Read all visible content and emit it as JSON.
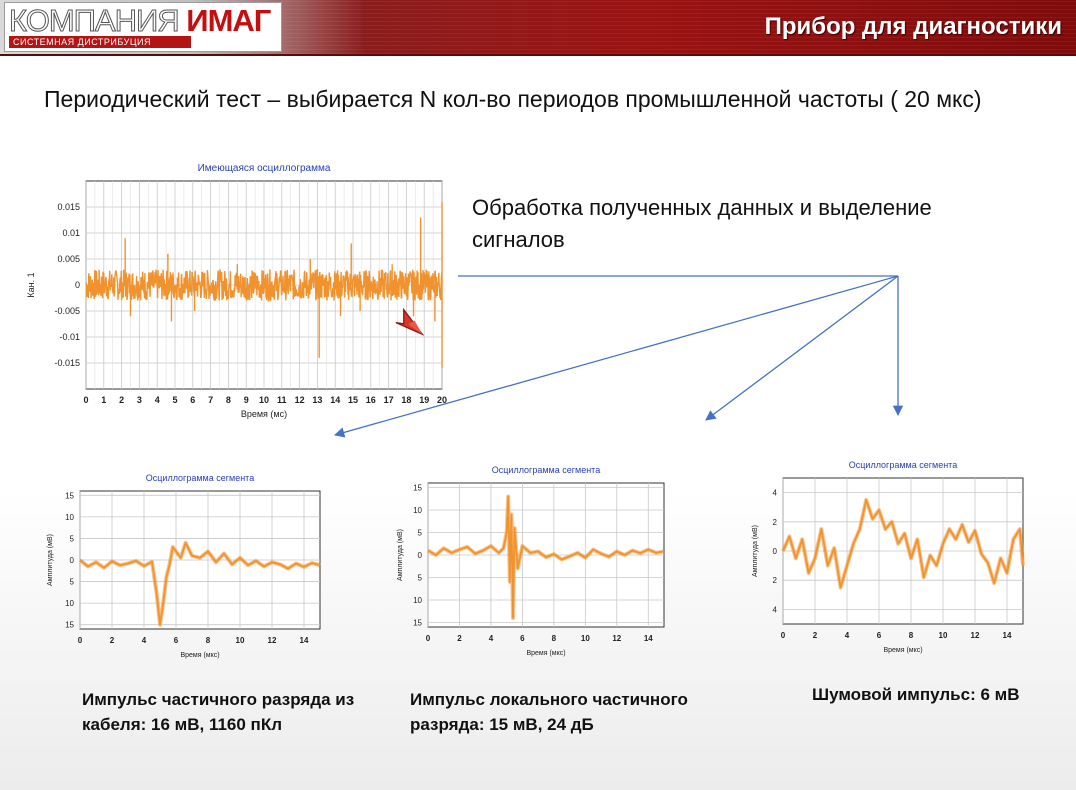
{
  "header": {
    "logo_word1": "КОМПАНИЯ",
    "logo_word2": "ИМАГ",
    "logo_sub": "СИСТЕМНАЯ ДИСТРИБУЦИЯ",
    "title": "Прибор для диагностики"
  },
  "main_text": "Периодический тест – выбирается N кол-во периодов промышленной частоты ( 20 мкс)",
  "processing_text": "Обработка полученных данных и выделение сигналов",
  "colors": {
    "signal": "#f0922e",
    "arrow": "#4472c4",
    "header_red": "#9a1313",
    "chart_title": "#2a3fb8"
  },
  "captions": [
    "Импульс частичного разряда из кабеля: 16 мВ, 1160 пКл",
    "Импульс локального частичного разряда: 15 мВ, 24 дБ",
    "Шумовой импульс: 6 мВ"
  ],
  "chart_data": [
    {
      "type": "line",
      "title": "Имеющаяся осциллограмма",
      "xlabel": "Время (мс)",
      "ylabel": "Кан. 1",
      "xlim": [
        0,
        20
      ],
      "ylim": [
        -0.02,
        0.02
      ],
      "xticks": [
        "0",
        "1",
        "2",
        "3",
        "4",
        "5",
        "6",
        "7",
        "8",
        "9",
        "10",
        "11",
        "12",
        "13",
        "14",
        "15",
        "16",
        "17",
        "18",
        "19",
        "20"
      ],
      "yticks": [
        "0.015",
        "0.01",
        "0.005",
        "0",
        "-0.005",
        "-0.01",
        "-0.015"
      ],
      "ytick_values": [
        0.015,
        0.01,
        0.005,
        0,
        -0.005,
        -0.01,
        -0.015
      ],
      "noise_band": 0.003,
      "spikes": [
        [
          2.2,
          0.009
        ],
        [
          2.5,
          -0.006
        ],
        [
          4.6,
          0.006
        ],
        [
          4.8,
          -0.007
        ],
        [
          6.1,
          -0.005
        ],
        [
          8.5,
          0.004
        ],
        [
          12.6,
          0.005
        ],
        [
          13.1,
          -0.014
        ],
        [
          14.3,
          -0.006
        ],
        [
          14.9,
          0.008
        ],
        [
          15.4,
          -0.005
        ],
        [
          17.2,
          0.004
        ],
        [
          18.4,
          -0.006
        ],
        [
          18.8,
          0.013
        ],
        [
          19.6,
          -0.007
        ],
        [
          20,
          0.016
        ],
        [
          20,
          -0.016
        ]
      ],
      "grid": true
    },
    {
      "type": "line",
      "title": "Осциллограмма сегмента",
      "xlabel": "Время (мкс)",
      "ylabel": "Амплитуда (мВ)",
      "xlim": [
        0,
        15
      ],
      "ylim": [
        -16,
        16
      ],
      "xticks": [
        "0",
        "2",
        "4",
        "6",
        "8",
        "10",
        "12",
        "14"
      ],
      "xtick_values": [
        0,
        2,
        4,
        6,
        8,
        10,
        12,
        14
      ],
      "yticks": [
        "15",
        "10",
        "5",
        "0",
        "5",
        "10",
        "15"
      ],
      "ytick_values": [
        15,
        10,
        5,
        0,
        -5,
        -10,
        -15
      ],
      "x": [
        0,
        0.5,
        1,
        1.5,
        2,
        2.5,
        3,
        3.5,
        4,
        4.5,
        4.8,
        5,
        5.2,
        5.4,
        5.6,
        5.8,
        6,
        6.3,
        6.6,
        7,
        7.5,
        8,
        8.5,
        9,
        9.5,
        10,
        10.5,
        11,
        11.5,
        12,
        12.5,
        13,
        13.5,
        14,
        14.5,
        15
      ],
      "y": [
        0,
        -1.5,
        -0.5,
        -1.8,
        -0.3,
        -1.2,
        -0.8,
        -0.2,
        -1.4,
        -0.4,
        -8,
        -15,
        -10,
        -4,
        -1,
        3,
        2,
        0.5,
        4,
        1,
        0.5,
        2,
        -0.5,
        1.5,
        -1,
        0.5,
        -1.2,
        -0.2,
        -1.5,
        -0.5,
        -1,
        -2,
        -0.8,
        -1.6,
        -0.7,
        -1.2
      ],
      "grid": true
    },
    {
      "type": "line",
      "title": "Осциллограмма сегмента",
      "xlabel": "Время (мкс)",
      "ylabel": "Амплитуда (мВ)",
      "xlim": [
        0,
        15
      ],
      "ylim": [
        -16,
        16
      ],
      "xticks": [
        "0",
        "2",
        "4",
        "6",
        "8",
        "10",
        "12",
        "14"
      ],
      "xtick_values": [
        0,
        2,
        4,
        6,
        8,
        10,
        12,
        14
      ],
      "yticks": [
        "15",
        "10",
        "5",
        "0",
        "5",
        "10",
        "15"
      ],
      "ytick_values": [
        15,
        10,
        5,
        0,
        -5,
        -10,
        -15
      ],
      "x": [
        0,
        0.5,
        1,
        1.5,
        2,
        2.5,
        3,
        3.5,
        4,
        4.5,
        4.8,
        5,
        5.1,
        5.2,
        5.3,
        5.4,
        5.5,
        5.7,
        6,
        6.5,
        7,
        7.5,
        8,
        8.5,
        9,
        9.5,
        10,
        10.5,
        11,
        11.5,
        12,
        12.5,
        13,
        13.5,
        14,
        14.5,
        15
      ],
      "y": [
        1,
        0,
        1.5,
        0.5,
        1.2,
        1.8,
        0.3,
        1,
        2,
        0.5,
        1.5,
        5,
        13,
        -6,
        9,
        -14,
        6,
        -3,
        2,
        0.5,
        0.8,
        -0.5,
        0.2,
        -1,
        -0.3,
        0.5,
        -0.6,
        1.2,
        0.3,
        -0.4,
        0.8,
        0,
        1,
        0.4,
        1.2,
        0.5,
        0.8
      ],
      "grid": true
    },
    {
      "type": "line",
      "title": "Осциллограмма сегмента",
      "xlabel": "Время (мкс)",
      "ylabel": "Амплитуда (мВ)",
      "xlim": [
        0,
        15
      ],
      "ylim": [
        -5,
        5
      ],
      "xticks": [
        "0",
        "2",
        "4",
        "6",
        "8",
        "10",
        "12",
        "14"
      ],
      "xtick_values": [
        0,
        2,
        4,
        6,
        8,
        10,
        12,
        14
      ],
      "yticks": [
        "4",
        "2",
        "0",
        "2",
        "4"
      ],
      "ytick_values": [
        4,
        2,
        0,
        -2,
        -4
      ],
      "x": [
        0,
        0.4,
        0.8,
        1.2,
        1.6,
        2,
        2.4,
        2.8,
        3.2,
        3.6,
        4,
        4.4,
        4.8,
        5.2,
        5.6,
        6,
        6.4,
        6.8,
        7.2,
        7.6,
        8,
        8.4,
        8.8,
        9.2,
        9.6,
        10,
        10.4,
        10.8,
        11.2,
        11.6,
        12,
        12.4,
        12.8,
        13.2,
        13.6,
        14,
        14.4,
        14.8,
        15
      ],
      "y": [
        0,
        1,
        -0.5,
        0.8,
        -1.5,
        -0.5,
        1.5,
        -1,
        0.2,
        -2.5,
        -1,
        0.5,
        1.5,
        3.5,
        2.2,
        2.8,
        1.5,
        2,
        0.5,
        1.2,
        -0.5,
        0.8,
        -1.8,
        -0.3,
        -1,
        0.5,
        1.5,
        0.8,
        1.8,
        0.6,
        1.4,
        -0.2,
        -0.8,
        -2.2,
        -0.5,
        -1.5,
        0.8,
        1.5,
        -1
      ],
      "grid": true
    }
  ]
}
